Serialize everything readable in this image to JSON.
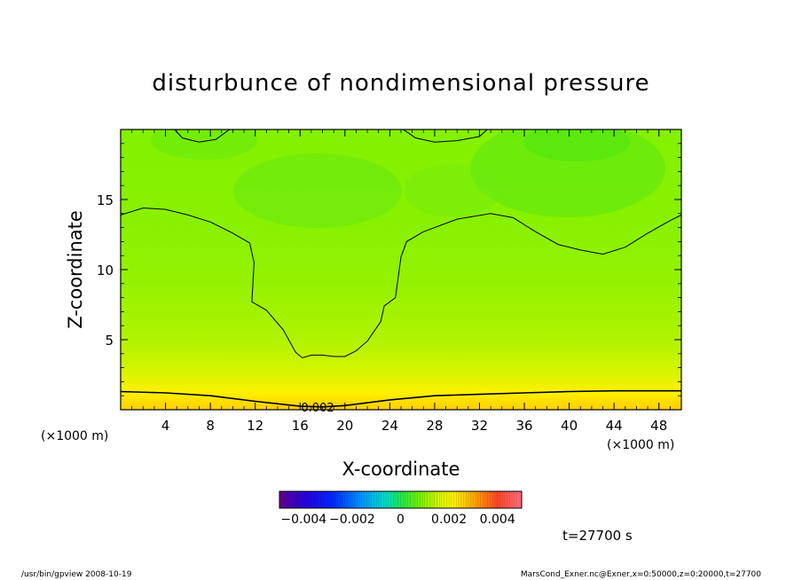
{
  "chart_data": {
    "type": "heatmap",
    "title": "disturbunce of nondimensional pressure",
    "xlabel": "X-coordinate",
    "ylabel": "Z-coordinate",
    "x_unit_left": "(×1000 m)",
    "x_unit_right": "(×1000 m)",
    "xlim": [
      0,
      50
    ],
    "ylim": [
      0,
      20
    ],
    "x_ticks": [
      {
        "value": 4,
        "label": "4"
      },
      {
        "value": 8,
        "label": "8"
      },
      {
        "value": 12,
        "label": "12"
      },
      {
        "value": 16,
        "label": "16"
      },
      {
        "value": 20,
        "label": "20"
      },
      {
        "value": 24,
        "label": "24"
      },
      {
        "value": 28,
        "label": "28"
      },
      {
        "value": 32,
        "label": "32"
      },
      {
        "value": 36,
        "label": "36"
      },
      {
        "value": 40,
        "label": "40"
      },
      {
        "value": 44,
        "label": "44"
      },
      {
        "value": 48,
        "label": "48"
      }
    ],
    "y_ticks": [
      {
        "value": 5,
        "label": "5"
      },
      {
        "value": 10,
        "label": "10"
      },
      {
        "value": 15,
        "label": "15"
      }
    ],
    "colorbar": {
      "range": [
        -0.005,
        0.005
      ],
      "labels": [
        {
          "value": -0.004,
          "label": "−0.004"
        },
        {
          "value": -0.002,
          "label": "−0.002"
        },
        {
          "value": 0,
          "label": "0"
        },
        {
          "value": 0.002,
          "label": "0.002"
        },
        {
          "value": 0.004,
          "label": "0.004"
        }
      ]
    },
    "contour_label": "0.002",
    "contours": [
      {
        "name": "lower",
        "points": [
          [
            0,
            1.3
          ],
          [
            4,
            1.2
          ],
          [
            8,
            1.0
          ],
          [
            12,
            0.6
          ],
          [
            16,
            0.25
          ],
          [
            18,
            0.2
          ],
          [
            20,
            0.3
          ],
          [
            24,
            0.7
          ],
          [
            28,
            1.0
          ],
          [
            32,
            1.1
          ],
          [
            36,
            1.2
          ],
          [
            40,
            1.3
          ],
          [
            44,
            1.35
          ],
          [
            48,
            1.35
          ],
          [
            50,
            1.35
          ]
        ]
      },
      {
        "name": "middle",
        "points": [
          [
            0,
            13.9
          ],
          [
            2,
            14.4
          ],
          [
            4,
            14.3
          ],
          [
            6,
            13.9
          ],
          [
            8,
            13.4
          ],
          [
            10,
            12.6
          ],
          [
            11.5,
            11.9
          ],
          [
            11.9,
            10.5
          ],
          [
            11.7,
            7.7
          ],
          [
            13,
            7.1
          ],
          [
            14.5,
            5.7
          ],
          [
            15.6,
            4.1
          ],
          [
            16.2,
            3.7
          ],
          [
            17,
            3.9
          ],
          [
            18,
            3.9
          ],
          [
            19,
            3.8
          ],
          [
            20,
            3.8
          ],
          [
            21,
            4.2
          ],
          [
            22,
            4.9
          ],
          [
            23.2,
            6.3
          ],
          [
            23.5,
            7.4
          ],
          [
            24.5,
            8.0
          ],
          [
            25,
            10.9
          ],
          [
            25.5,
            12.0
          ],
          [
            27,
            12.7
          ],
          [
            30,
            13.6
          ],
          [
            33,
            14.0
          ],
          [
            35,
            13.7
          ],
          [
            37,
            12.7
          ],
          [
            39,
            11.8
          ],
          [
            41,
            11.4
          ],
          [
            43,
            11.1
          ],
          [
            45,
            11.6
          ],
          [
            47,
            12.6
          ],
          [
            49,
            13.5
          ],
          [
            50,
            13.9
          ]
        ]
      },
      {
        "name": "top-left",
        "points": [
          [
            4.8,
            20
          ],
          [
            5.5,
            19.4
          ],
          [
            7,
            19.1
          ],
          [
            8.5,
            19.3
          ],
          [
            9.7,
            20
          ]
        ]
      },
      {
        "name": "top-right",
        "points": [
          [
            25.2,
            20
          ],
          [
            26.3,
            19.4
          ],
          [
            28,
            19.1
          ],
          [
            30,
            19.2
          ],
          [
            32,
            19.5
          ],
          [
            32.7,
            20
          ]
        ]
      }
    ],
    "field_profile_z": [
      {
        "z": 0,
        "value": 0.0026
      },
      {
        "z": 1.2,
        "value": 0.0022
      },
      {
        "z": 2.5,
        "value": 0.0017
      },
      {
        "z": 5,
        "value": 0.0013
      },
      {
        "z": 9,
        "value": 0.00105
      },
      {
        "z": 13,
        "value": 0.00095
      },
      {
        "z": 20,
        "value": 0.0009
      }
    ]
  },
  "annotation": {
    "time": "t=27700 s"
  },
  "footer": {
    "left": "/usr/bin/gpview   2008-10-19",
    "right": "MarsCond_Exner.nc@Exner,x=0:50000,z=0:20000,t=27700"
  }
}
